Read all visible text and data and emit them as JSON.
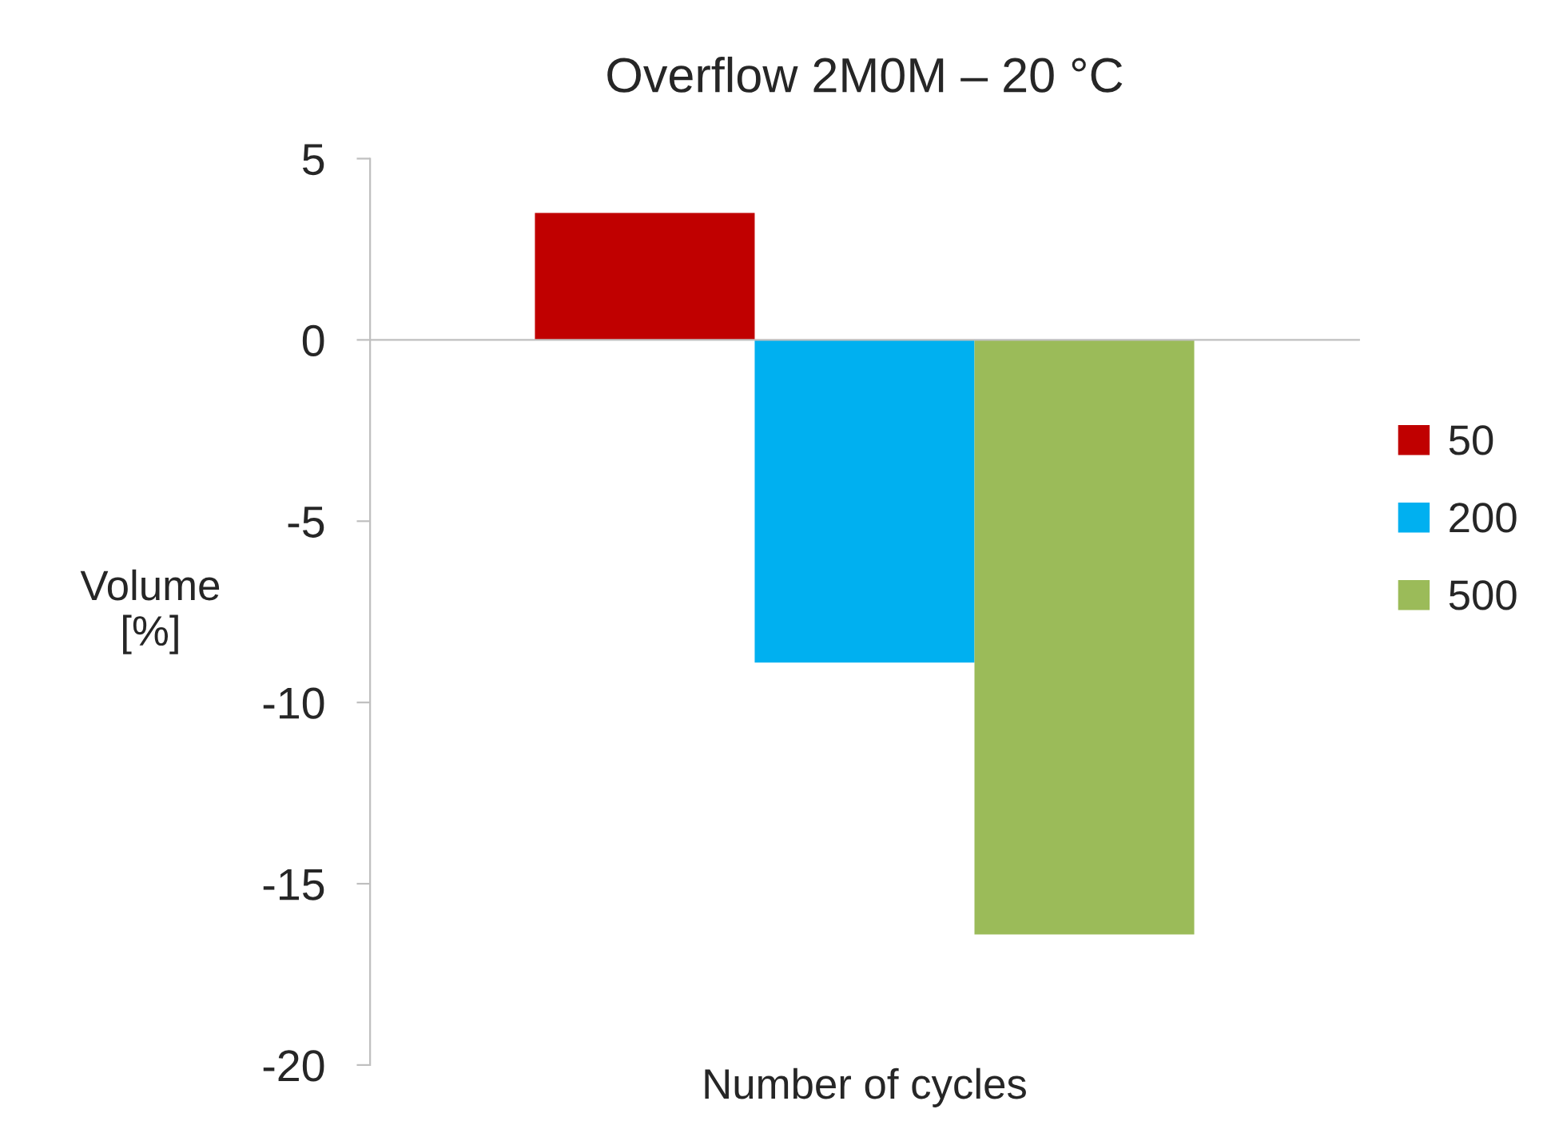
{
  "chart_data": {
    "type": "bar",
    "title": "Overflow 2M0M – 20 °C",
    "xlabel": "Number of cycles",
    "ylabel": "Volume\n[%]",
    "categories": [
      null
    ],
    "series": [
      {
        "name": "50",
        "color": "#c00000",
        "values": [
          3.5
        ]
      },
      {
        "name": "200",
        "color": "#00b0f0",
        "values": [
          -8.9
        ]
      },
      {
        "name": "500",
        "color": "#9bbb59",
        "values": [
          -16.4
        ]
      }
    ],
    "ylim": [
      -20,
      5
    ],
    "yticks": [
      -20,
      -15,
      -10,
      -5,
      0,
      5
    ],
    "legend": "right"
  }
}
